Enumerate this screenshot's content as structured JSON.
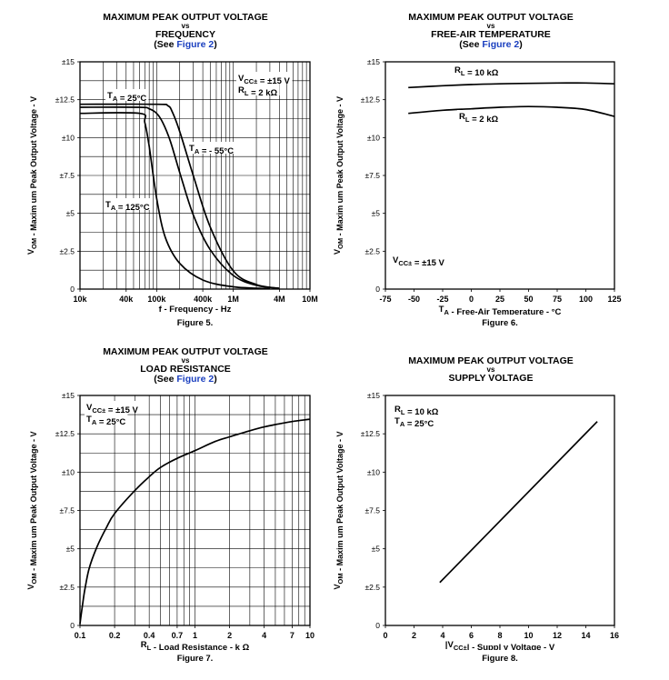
{
  "chart_data": [
    {
      "id": "fig5",
      "type": "line",
      "title_lines": [
        "MAXIMUM PEAK OUTPUT VOLTAGE",
        "vs",
        "FREQUENCY"
      ],
      "see_prefix": "(See ",
      "see_link": "Figure 2",
      "see_suffix": ")",
      "ylabel": "V_OM - Maxim um Peak Output Voltage - V",
      "xlabel": "f - Frequency - Hz",
      "caption": "Figure 5.",
      "xscale": "log",
      "xlim": [
        10000,
        10000000
      ],
      "ylim": [
        0,
        15
      ],
      "grid": true,
      "yticks": [
        0,
        2.5,
        5,
        7.5,
        10,
        12.5,
        15
      ],
      "yticklabels": [
        "0",
        "±2.5",
        "±5",
        "±7.5",
        "±10",
        "±12.5",
        "±15"
      ],
      "xticks": [
        10000,
        40000,
        100000,
        400000,
        1000000,
        4000000,
        10000000
      ],
      "xticklabels": [
        "10k",
        "40k",
        "100k",
        "400k",
        "1M",
        "4M",
        "10M"
      ],
      "series": [
        {
          "name": "TA = 25°C",
          "x": [
            10000,
            60000,
            80000,
            100000,
            120000,
            150000,
            200000,
            300000,
            500000,
            1000000,
            2000000,
            4000000
          ],
          "y": [
            12.0,
            12.0,
            11.9,
            11.6,
            11.0,
            9.8,
            7.7,
            4.9,
            2.6,
            0.9,
            0.25,
            0.05
          ]
        },
        {
          "name": "TA = -55°C",
          "x": [
            10000,
            100000,
            140000,
            160000,
            200000,
            300000,
            500000,
            1000000,
            2000000,
            4000000
          ],
          "y": [
            12.2,
            12.2,
            12.1,
            11.7,
            10.4,
            7.5,
            4.1,
            1.2,
            0.3,
            0.05
          ]
        },
        {
          "name": "TA = 125°C",
          "x": [
            10000,
            60000,
            70000,
            80000,
            100000,
            130000,
            200000,
            400000,
            1000000,
            3000000
          ],
          "y": [
            11.6,
            11.6,
            11.0,
            9.4,
            6.0,
            3.4,
            1.7,
            0.6,
            0.15,
            0.03
          ]
        }
      ],
      "annotations": [
        "TA = 25°C",
        "TA = - 55°C",
        "TA = 125°C",
        "VCC± = ±15 V",
        "RL = 2 kΩ"
      ]
    },
    {
      "id": "fig6",
      "type": "line",
      "title_lines": [
        "MAXIMUM PEAK OUTPUT VOLTAGE",
        "vs",
        "FREE-AIR TEMPERATURE"
      ],
      "see_prefix": "(See ",
      "see_link": "Figure 2",
      "see_suffix": ")",
      "ylabel": "V_OM - Maxim um Peak Output Voltage - V",
      "xlabel": "TA - Free-Air Temperature - °C",
      "caption": "Figure 6.",
      "xscale": "linear",
      "xlim": [
        -75,
        125
      ],
      "ylim": [
        0,
        15
      ],
      "grid": false,
      "yticks": [
        0,
        2.5,
        5,
        7.5,
        10,
        12.5,
        15
      ],
      "yticklabels": [
        "0",
        "±2.5",
        "±5",
        "±7.5",
        "±10",
        "±12.5",
        "±15"
      ],
      "xticks": [
        -75,
        -50,
        -25,
        0,
        25,
        50,
        75,
        100,
        125
      ],
      "xticklabels": [
        "-75",
        "-50",
        "-25",
        "0",
        "25",
        "50",
        "75",
        "100",
        "125"
      ],
      "series": [
        {
          "name": "RL = 10 kΩ",
          "x": [
            -55,
            -25,
            0,
            25,
            50,
            75,
            100,
            125
          ],
          "y": [
            13.3,
            13.42,
            13.5,
            13.55,
            13.58,
            13.6,
            13.6,
            13.55
          ]
        },
        {
          "name": "RL = 2 kΩ",
          "x": [
            -55,
            -25,
            0,
            25,
            50,
            75,
            100,
            125
          ],
          "y": [
            11.6,
            11.8,
            11.9,
            12.0,
            12.05,
            12.0,
            11.85,
            11.4
          ]
        }
      ],
      "annotations": [
        "RL = 10 kΩ",
        "RL = 2 kΩ",
        "VCC± = ±15 V"
      ]
    },
    {
      "id": "fig7",
      "type": "line",
      "title_lines": [
        "MAXIMUM PEAK OUTPUT VOLTAGE",
        "vs",
        "LOAD RESISTANCE"
      ],
      "see_prefix": "(See ",
      "see_link": "Figure 2",
      "see_suffix": ")",
      "ylabel": "V_OM - Maxim um Peak Output Voltage - V",
      "xlabel": "RL - Load Resistance - k Ω",
      "caption": "Figure 7.",
      "xscale": "log",
      "xlim": [
        0.1,
        10
      ],
      "ylim": [
        0,
        15
      ],
      "grid": true,
      "yticks": [
        0,
        2.5,
        5,
        7.5,
        10,
        12.5,
        15
      ],
      "yticklabels": [
        "0",
        "±2.5",
        "±5",
        "±7.5",
        "±10",
        "±12.5",
        "±15"
      ],
      "xticks": [
        0.1,
        0.2,
        0.4,
        0.7,
        1,
        2,
        4,
        7,
        10
      ],
      "xticklabels": [
        "0.1",
        "0.2",
        "0.4",
        "0.7",
        "1",
        "2",
        "4",
        "7",
        "10"
      ],
      "series": [
        {
          "name": "VOM",
          "x": [
            0.1,
            0.105,
            0.11,
            0.12,
            0.14,
            0.17,
            0.2,
            0.3,
            0.4,
            0.5,
            0.7,
            1,
            1.5,
            2,
            3,
            4,
            5,
            7,
            10
          ],
          "y": [
            0.1,
            1.3,
            2.3,
            3.7,
            5.1,
            6.4,
            7.3,
            8.8,
            9.7,
            10.3,
            10.9,
            11.4,
            12.0,
            12.3,
            12.7,
            12.95,
            13.1,
            13.3,
            13.45
          ]
        }
      ],
      "annotations": [
        "VCC± = ±15 V",
        "TA = 25°C"
      ]
    },
    {
      "id": "fig8",
      "type": "line",
      "title_lines": [
        "MAXIMUM PEAK OUTPUT VOLTAGE",
        "vs",
        "SUPPLY VOLTAGE"
      ],
      "see_prefix": "",
      "see_link": "",
      "see_suffix": "",
      "ylabel": "V_OM - Maxim um Peak Output Voltage - V",
      "xlabel": "|VCC±| - Suppl y Voltage - V",
      "caption": "Figure 8.",
      "xscale": "linear",
      "xlim": [
        0,
        16
      ],
      "ylim": [
        0,
        15
      ],
      "grid": false,
      "yticks": [
        0,
        2.5,
        5,
        7.5,
        10,
        12.5,
        15
      ],
      "yticklabels": [
        "0",
        "±2.5",
        "±5",
        "±7.5",
        "±10",
        "±12.5",
        "±15"
      ],
      "xticks": [
        0,
        2,
        4,
        6,
        8,
        10,
        12,
        14,
        16
      ],
      "xticklabels": [
        "0",
        "2",
        "4",
        "6",
        "8",
        "10",
        "12",
        "14",
        "16"
      ],
      "series": [
        {
          "name": "VOM",
          "x": [
            3.8,
            14.8
          ],
          "y": [
            2.8,
            13.3
          ]
        }
      ],
      "annotations": [
        "RL = 10 kΩ",
        "TA = 25°C"
      ]
    }
  ]
}
